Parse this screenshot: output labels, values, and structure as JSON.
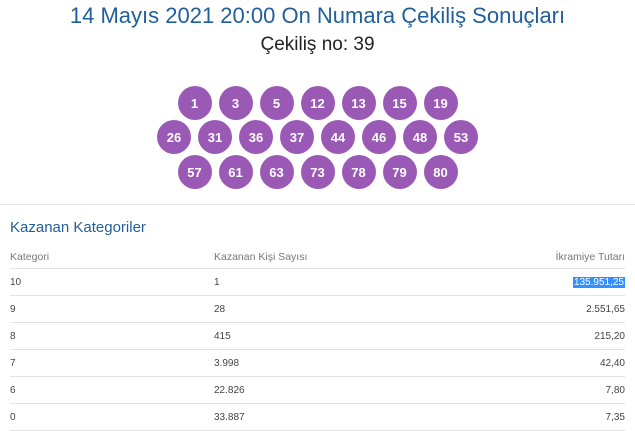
{
  "header": {
    "title": "14 Mayıs 2021 20:00 On Numara Çekiliş Sonuçları",
    "draw_number": "Çekiliş no: 39"
  },
  "balls": {
    "row1": [
      "1",
      "3",
      "5",
      "12",
      "13",
      "15",
      "19"
    ],
    "row2": [
      "26",
      "31",
      "36",
      "37",
      "44",
      "46",
      "48",
      "53"
    ],
    "row3": [
      "57",
      "61",
      "63",
      "73",
      "78",
      "79",
      "80"
    ]
  },
  "colors": {
    "ball": "#9b59b6",
    "title": "#1f5f9c",
    "selection": "#3390ff"
  },
  "winners": {
    "section_title": "Kazanan Kategoriler",
    "headers": [
      "Kategori",
      "Kazanan Kişi Sayısı",
      "İkramiye Tutarı"
    ],
    "rows": [
      {
        "category": "10",
        "winners": "1",
        "prize": "135.951,25"
      },
      {
        "category": "9",
        "winners": "28",
        "prize": "2.551,65"
      },
      {
        "category": "8",
        "winners": "415",
        "prize": "215,20"
      },
      {
        "category": "7",
        "winners": "3.998",
        "prize": "42,40"
      },
      {
        "category": "6",
        "winners": "22.826",
        "prize": "7,80"
      },
      {
        "category": "0",
        "winners": "33.887",
        "prize": "7,35"
      }
    ]
  }
}
